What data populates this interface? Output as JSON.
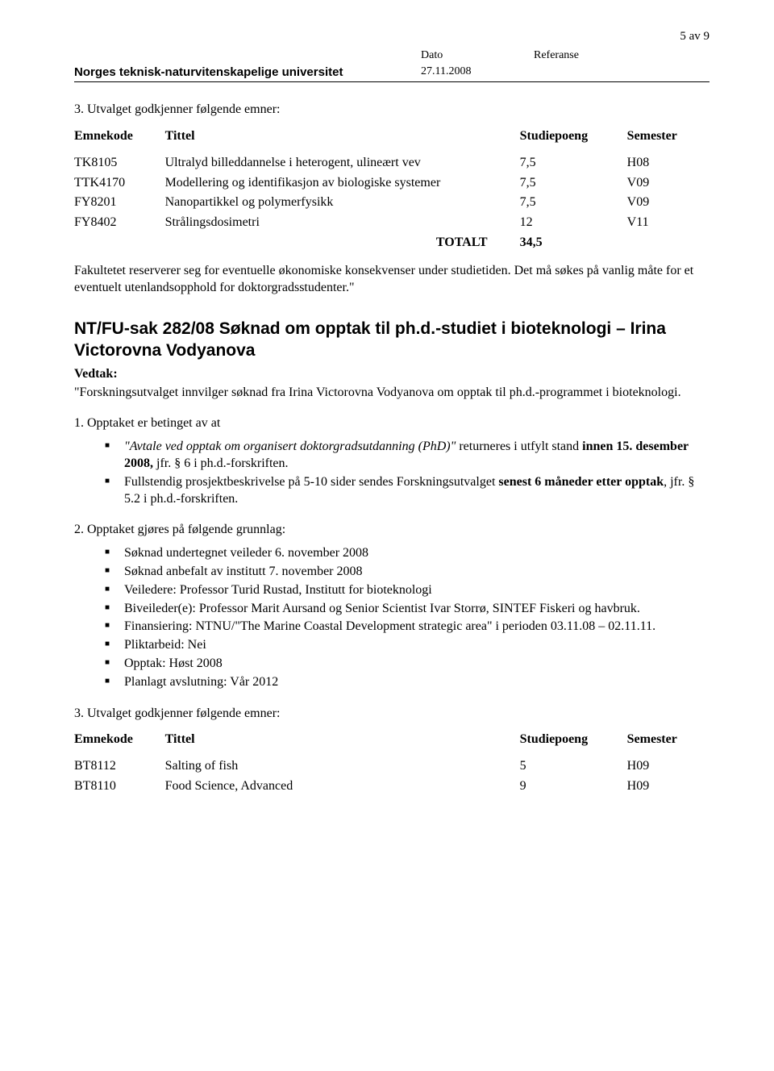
{
  "page_number": "5 av 9",
  "header": {
    "dato_label": "Dato",
    "referanse_label": "Referanse",
    "institution": "Norges teknisk-naturvitenskapelige universitet",
    "date": "27.11.2008"
  },
  "intro_line": "3. Utvalget godkjenner følgende emner:",
  "table1": {
    "headers": {
      "code": "Emnekode",
      "title": "Tittel",
      "sp": "Studiepoeng",
      "sem": "Semester"
    },
    "rows": [
      {
        "code": "TK8105",
        "title": "Ultralyd billeddannelse i heterogent, ulineært vev",
        "sp": "7,5",
        "sem": "H08"
      },
      {
        "code": "TTK4170",
        "title": "Modellering og identifikasjon av biologiske systemer",
        "sp": "7,5",
        "sem": "V09"
      },
      {
        "code": "FY8201",
        "title": "Nanopartikkel og polymerfysikk",
        "sp": "7,5",
        "sem": "V09"
      },
      {
        "code": "FY8402",
        "title": "Strålingsdosimetri",
        "sp": "12",
        "sem": "V11"
      }
    ],
    "total_label": "TOTALT",
    "total_value": "34,5"
  },
  "faculty_note": "Fakultetet reserverer seg for eventuelle økonomiske konsekvenser under studietiden. Det må søkes på vanlig måte for et eventuelt utenlandsopphold for doktorgradsstudenter.\"",
  "heading": "NT/FU-sak 282/08   Søknad om opptak til ph.d.-studiet i bioteknologi – Irina Victorovna Vodyanova",
  "vedtak_label": "Vedtak:",
  "vedtak_text": "\"Forskningsutvalget innvilger søknad fra Irina Victorovna Vodyanova om opptak til ph.d.-programmet i bioteknologi.",
  "sec1": {
    "lead": "1. Opptaket er betinget av at",
    "b1_italic": "\"Avtale ved opptak om organisert doktorgradsutdanning (PhD)\"",
    "b1_mid": " returneres i utfylt stand ",
    "b1_bold": "innen 15. desember 2008,",
    "b1_tail": " jfr. § 6 i ph.d.-forskriften.",
    "b2_pre": "Fullstendig prosjektbeskrivelse på 5-10 sider sendes Forskningsutvalget ",
    "b2_bold": "senest 6 måneder etter opptak",
    "b2_tail": ", jfr. § 5.2 i ph.d.-forskriften."
  },
  "sec2": {
    "lead": "2. Opptaket gjøres på følgende grunnlag:",
    "items": [
      "Søknad undertegnet veileder 6. november 2008",
      "Søknad anbefalt av institutt 7. november 2008",
      "Veiledere: Professor Turid Rustad, Institutt for bioteknologi",
      "Biveileder(e): Professor Marit Aursand og Senior Scientist Ivar Storrø, SINTEF Fiskeri og havbruk.",
      "Finansiering: NTNU/\"The Marine Coastal Development strategic area\" i perioden 03.11.08 – 02.11.11.",
      "Pliktarbeid: Nei",
      "Opptak: Høst 2008",
      "Planlagt avslutning: Vår 2012"
    ]
  },
  "sec3_lead": "3. Utvalget godkjenner følgende emner:",
  "table2": {
    "headers": {
      "code": "Emnekode",
      "title": "Tittel",
      "sp": "Studiepoeng",
      "sem": "Semester"
    },
    "rows": [
      {
        "code": "BT8112",
        "title": "Salting of fish",
        "sp": "5",
        "sem": "H09"
      },
      {
        "code": "BT8110",
        "title": "Food Science, Advanced",
        "sp": "9",
        "sem": "H09"
      }
    ]
  }
}
